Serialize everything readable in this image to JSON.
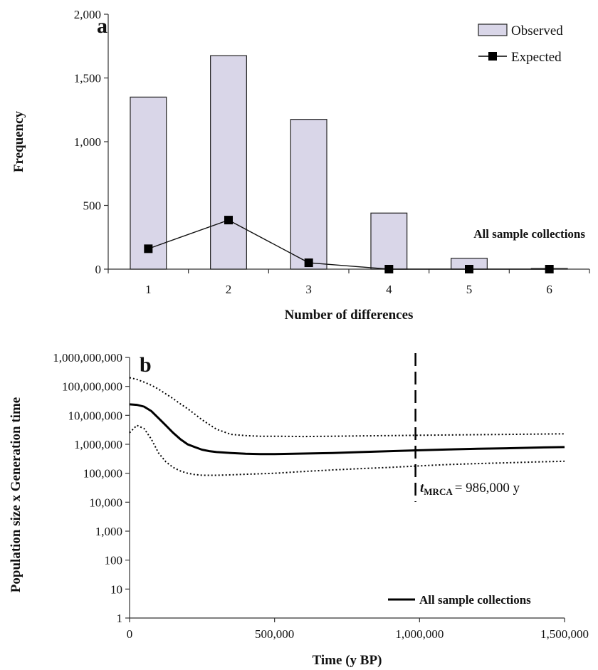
{
  "chart_data": [
    {
      "panel_label": "a",
      "type": "bar",
      "xlabel": "Number of differences",
      "ylabel": "Frequency",
      "ylim": [
        0,
        2000
      ],
      "yticks": [
        "0",
        "500",
        "1,000",
        "1,500",
        "2,000"
      ],
      "ytick_values": [
        0,
        500,
        1000,
        1500,
        2000
      ],
      "categories": [
        "1",
        "2",
        "3",
        "4",
        "5",
        "6"
      ],
      "series": [
        {
          "name": "Observed",
          "type": "bar",
          "values": [
            1350,
            1675,
            1175,
            440,
            85,
            5
          ]
        },
        {
          "name": "Expected",
          "type": "line",
          "values": [
            160,
            385,
            50,
            0,
            0,
            0
          ]
        }
      ],
      "legend_position": "top-right",
      "annotation": "All sample collections",
      "colors": {
        "bar_fill": "#d9d6e8",
        "bar_stroke": "#222222",
        "line": "#111111"
      },
      "grid": false
    },
    {
      "panel_label": "b",
      "type": "line",
      "xlabel": "Time (y BP)",
      "ylabel": "Population size x Generation time",
      "y_scale": "log",
      "ylim": [
        1,
        1000000000
      ],
      "xlim": [
        0,
        1500000
      ],
      "yticks": [
        "1",
        "10",
        "100",
        "1,000",
        "10,000",
        "100,000",
        "1,000,000",
        "10,000,000",
        "100,000,000",
        "1,000,000,000"
      ],
      "ytick_values": [
        1,
        10,
        100,
        1000,
        10000,
        100000,
        1000000,
        10000000,
        100000000,
        1000000000
      ],
      "xticks": [
        "0",
        "500,000",
        "1,000,000",
        "1,500,000"
      ],
      "xtick_values": [
        0,
        500000,
        1000000,
        1500000
      ],
      "x": [
        0,
        25000,
        50000,
        75000,
        100000,
        125000,
        150000,
        175000,
        200000,
        225000,
        250000,
        275000,
        300000,
        350000,
        400000,
        450000,
        500000,
        600000,
        700000,
        800000,
        900000,
        1000000,
        1100000,
        1200000,
        1300000,
        1400000,
        1500000
      ],
      "series": [
        {
          "name": "All sample collections",
          "style": "solid",
          "values": [
            24000000,
            23000000,
            20000000,
            14000000,
            8000000,
            4500000,
            2500000,
            1500000,
            1000000,
            800000,
            650000,
            580000,
            540000,
            500000,
            470000,
            460000,
            460000,
            480000,
            500000,
            540000,
            580000,
            620000,
            660000,
            700000,
            730000,
            770000,
            800000
          ]
        },
        {
          "style": "dotted",
          "values": [
            200000000,
            175000000,
            140000000,
            110000000,
            80000000,
            55000000,
            38000000,
            25000000,
            17000000,
            11000000,
            7000000,
            4800000,
            3300000,
            2200000,
            2000000,
            1900000,
            1900000,
            1850000,
            1900000,
            1950000,
            2000000,
            2050000,
            2100000,
            2150000,
            2200000,
            2250000,
            2300000
          ]
        },
        {
          "style": "dotted",
          "values": [
            2500000,
            4500000,
            3500000,
            1500000,
            500000,
            250000,
            160000,
            120000,
            100000,
            90000,
            85000,
            85000,
            85000,
            88000,
            92000,
            96000,
            100000,
            115000,
            130000,
            145000,
            160000,
            180000,
            200000,
            215000,
            230000,
            245000,
            260000
          ]
        }
      ],
      "vline": {
        "x": 986000,
        "style": "dashed"
      },
      "tmrca_label": {
        "t": "t",
        "sub": "MRCA",
        "text": "= 986,000 y"
      },
      "legend_position": "bottom-right",
      "grid": false
    }
  ]
}
